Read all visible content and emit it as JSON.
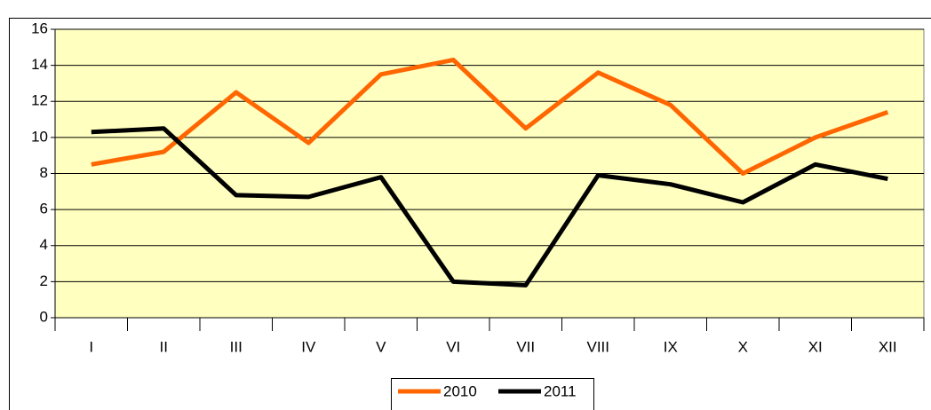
{
  "chart_data": {
    "type": "line",
    "categories": [
      "I",
      "II",
      "III",
      "IV",
      "V",
      "VI",
      "VII",
      "VIII",
      "IX",
      "X",
      "XI",
      "XII"
    ],
    "series": [
      {
        "name": "2010",
        "color": "#ff6600",
        "values": [
          8.5,
          9.2,
          12.5,
          9.7,
          13.5,
          14.3,
          10.5,
          13.6,
          11.8,
          8.0,
          10.0,
          11.4
        ]
      },
      {
        "name": "2011",
        "color": "#000000",
        "values": [
          10.3,
          10.5,
          6.8,
          6.7,
          7.8,
          2.0,
          1.8,
          7.9,
          7.4,
          6.4,
          8.5,
          7.7
        ]
      }
    ],
    "ylim": [
      0,
      16
    ],
    "yticks": [
      0,
      2,
      4,
      6,
      8,
      10,
      12,
      14,
      16
    ],
    "grid": true,
    "legend": "bottom"
  }
}
